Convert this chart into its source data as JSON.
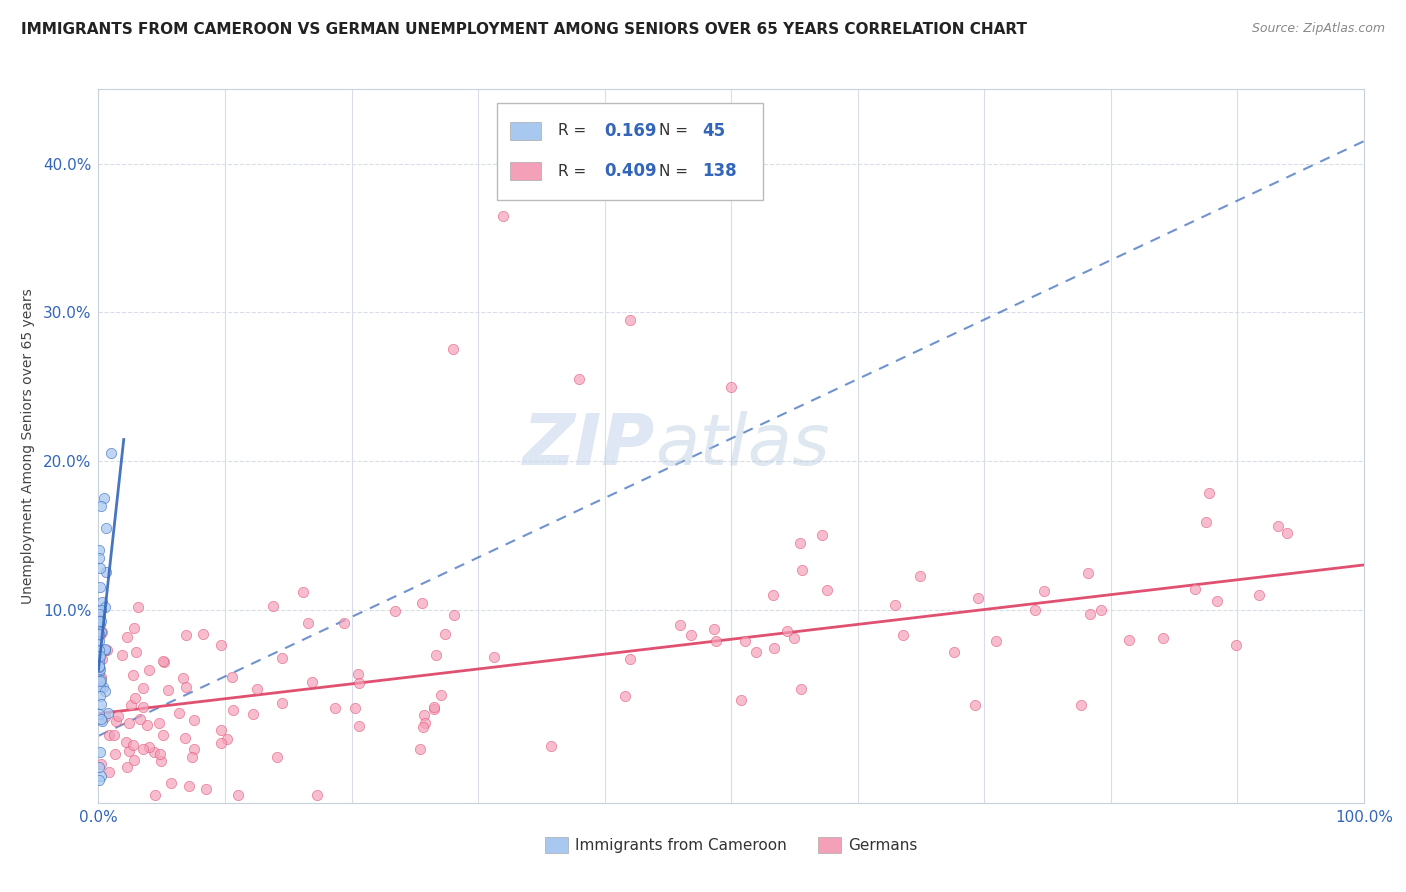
{
  "title": "IMMIGRANTS FROM CAMEROON VS GERMAN UNEMPLOYMENT AMONG SENIORS OVER 65 YEARS CORRELATION CHART",
  "source": "Source: ZipAtlas.com",
  "ylabel": "Unemployment Among Seniors over 65 years",
  "legend_label_1": "Immigrants from Cameroon",
  "legend_label_2": "Germans",
  "R1": 0.169,
  "N1": 45,
  "R2": 0.409,
  "N2": 138,
  "color1": "#a8c8f0",
  "color2": "#f4a0b8",
  "trendline1_color": "#3366bb",
  "trendline2_color": "#e05070",
  "bg_color": "#ffffff",
  "grid_color": "#d8dde8",
  "xlim": [
    0.0,
    1.0
  ],
  "ylim": [
    -0.03,
    0.45
  ],
  "watermark_zip": "ZIP",
  "watermark_atlas": "atlas"
}
